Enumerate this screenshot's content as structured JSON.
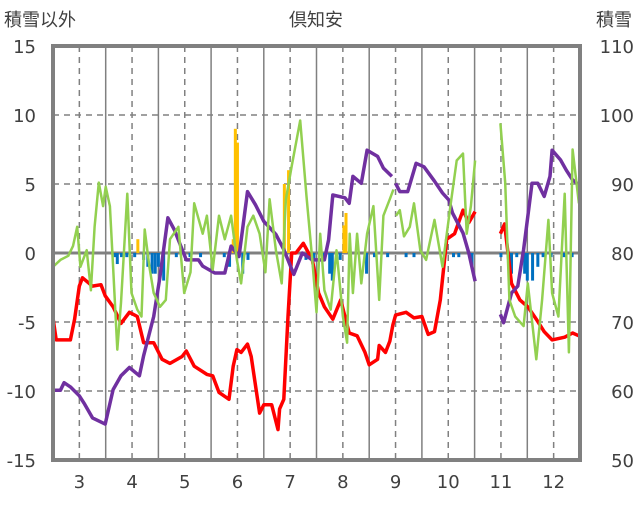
{
  "chart_data": {
    "type": "line",
    "title": "倶知安",
    "ylabel_left": "積雪以外",
    "ylabel_right": "積雪",
    "xlim": [
      2.5,
      12.5
    ],
    "ylim_left": [
      -15,
      15
    ],
    "ylim_right": [
      50,
      110
    ],
    "x_ticks": [
      "3",
      "4",
      "5",
      "6",
      "7",
      "8",
      "9",
      "10",
      "11",
      "12"
    ],
    "y_ticks_left": [
      "15",
      "10",
      "5",
      "0",
      "-5",
      "-10",
      "-15"
    ],
    "y_ticks_right": [
      "110",
      "100",
      "90",
      "80",
      "70",
      "60",
      "50"
    ],
    "grid": true,
    "colors": {
      "red": "#ff0000",
      "purple": "#7030a0",
      "green": "#92d050",
      "orange": "#ffc000",
      "blue": "#0070c0",
      "axis": "#808080"
    },
    "series": [
      {
        "name": "red",
        "axis": "left",
        "color": "#ff0000",
        "points": [
          [
            2.5,
            -4.7
          ],
          [
            2.56,
            -6.3
          ],
          [
            2.83,
            -6.3
          ],
          [
            2.91,
            -4.8
          ],
          [
            3.0,
            -2.4
          ],
          [
            3.06,
            -1.8
          ],
          [
            3.25,
            -2.4
          ],
          [
            3.41,
            -2.3
          ],
          [
            3.49,
            -3.1
          ],
          [
            3.64,
            -3.9
          ],
          [
            3.79,
            -5.1
          ],
          [
            3.95,
            -4.3
          ],
          [
            4.1,
            -4.6
          ],
          [
            4.22,
            -6.5
          ],
          [
            4.41,
            -6.5
          ],
          [
            4.57,
            -7.7
          ],
          [
            4.72,
            -8.0
          ],
          [
            4.95,
            -7.5
          ],
          [
            5.03,
            -7.1
          ],
          [
            5.18,
            -8.2
          ],
          [
            5.42,
            -8.8
          ],
          [
            5.53,
            -8.9
          ],
          [
            5.65,
            -10.1
          ],
          [
            5.84,
            -10.6
          ],
          [
            5.92,
            -8.2
          ],
          [
            5.99,
            -7.0
          ],
          [
            6.07,
            -7.2
          ],
          [
            6.19,
            -6.6
          ],
          [
            6.26,
            -7.5
          ],
          [
            6.42,
            -11.6
          ],
          [
            6.5,
            -11.0
          ],
          [
            6.65,
            -11.0
          ],
          [
            6.77,
            -12.8
          ],
          [
            6.8,
            -11.3
          ],
          [
            6.88,
            -10.6
          ],
          [
            6.96,
            -4.6
          ],
          [
            7.03,
            0
          ],
          [
            7.11,
            0
          ],
          [
            7.25,
            0.7
          ],
          [
            7.42,
            -0.5
          ],
          [
            7.54,
            -2.9
          ],
          [
            7.65,
            -3.9
          ],
          [
            7.81,
            -4.8
          ],
          [
            7.96,
            -3.4
          ],
          [
            8.12,
            -5.8
          ],
          [
            8.27,
            -6.0
          ],
          [
            8.42,
            -7.2
          ],
          [
            8.5,
            -8.1
          ],
          [
            8.66,
            -7.7
          ],
          [
            8.69,
            -6.7
          ],
          [
            8.81,
            -7.2
          ],
          [
            8.89,
            -6.4
          ],
          [
            8.95,
            -5.2
          ],
          [
            9.0,
            -4.5
          ],
          [
            9.2,
            -4.3
          ],
          [
            9.35,
            -4.7
          ],
          [
            9.5,
            -4.6
          ],
          [
            9.62,
            -5.9
          ],
          [
            9.74,
            -5.7
          ],
          [
            9.85,
            -3.4
          ],
          [
            9.97,
            1.0
          ],
          [
            10.12,
            1.4
          ],
          [
            10.28,
            3.1
          ],
          [
            10.39,
            2.2
          ],
          [
            10.51,
            3.0
          ],
          null,
          [
            10.99,
            1.4
          ],
          [
            11.07,
            2.1
          ],
          [
            11.2,
            -2.2
          ],
          [
            11.36,
            -3.4
          ],
          [
            11.51,
            -3.9
          ],
          [
            11.67,
            -4.8
          ],
          [
            11.82,
            -5.7
          ],
          [
            11.97,
            -6.3
          ],
          [
            12.21,
            -6.1
          ],
          [
            12.36,
            -5.8
          ],
          [
            12.48,
            -6.0
          ]
        ]
      },
      {
        "name": "purple",
        "axis": "right",
        "color": "#7030a0",
        "points": [
          [
            2.5,
            60.1
          ],
          [
            2.64,
            60.1
          ],
          [
            2.71,
            61.2
          ],
          [
            2.83,
            60.6
          ],
          [
            3.0,
            59.3
          ],
          [
            3.1,
            58.1
          ],
          [
            3.25,
            56.1
          ],
          [
            3.49,
            55.2
          ],
          [
            3.64,
            60.2
          ],
          [
            3.79,
            62.2
          ],
          [
            3.95,
            63.4
          ],
          [
            4.14,
            62.2
          ],
          [
            4.22,
            65.1
          ],
          [
            4.41,
            70.8
          ],
          [
            4.53,
            76.6
          ],
          [
            4.68,
            85.1
          ],
          [
            4.8,
            83.4
          ],
          [
            5.03,
            79.0
          ],
          [
            5.26,
            79.0
          ],
          [
            5.34,
            78.1
          ],
          [
            5.57,
            77.1
          ],
          [
            5.76,
            77.1
          ],
          [
            5.88,
            81.0
          ],
          [
            6.03,
            79.5
          ],
          [
            6.19,
            88.9
          ],
          [
            6.34,
            87.0
          ],
          [
            6.5,
            84.6
          ],
          [
            6.73,
            82.7
          ],
          [
            6.88,
            80.5
          ],
          [
            7.07,
            76.9
          ],
          [
            7.23,
            80.0
          ],
          [
            7.42,
            79.0
          ],
          [
            7.65,
            79.0
          ],
          [
            7.73,
            81.9
          ],
          [
            7.81,
            88.4
          ],
          [
            8.04,
            88.0
          ],
          [
            8.12,
            87.2
          ],
          [
            8.19,
            91.1
          ],
          [
            8.35,
            90.1
          ],
          [
            8.46,
            94.9
          ],
          [
            8.66,
            94.0
          ],
          [
            8.77,
            92.3
          ],
          [
            8.93,
            91.1
          ],
          null,
          [
            9.0,
            90.1
          ],
          [
            9.08,
            88.9
          ],
          [
            9.23,
            88.9
          ],
          [
            9.39,
            93.0
          ],
          [
            9.54,
            92.5
          ],
          [
            9.74,
            90.4
          ],
          [
            9.89,
            88.7
          ],
          [
            10.01,
            87.7
          ],
          [
            10.08,
            85.8
          ],
          [
            10.28,
            82.9
          ],
          [
            10.39,
            80.0
          ],
          [
            10.51,
            75.9
          ],
          null,
          [
            10.99,
            71.1
          ],
          [
            11.05,
            69.9
          ],
          [
            11.2,
            74.2
          ],
          [
            11.32,
            75.2
          ],
          [
            11.43,
            80.5
          ],
          [
            11.59,
            90.1
          ],
          [
            11.7,
            90.1
          ],
          [
            11.82,
            88.2
          ],
          [
            11.93,
            91.1
          ],
          [
            11.97,
            94.9
          ],
          [
            12.13,
            93.5
          ],
          [
            12.24,
            92.0
          ],
          [
            12.36,
            90.6
          ],
          [
            12.48,
            89.9
          ]
        ]
      },
      {
        "name": "green",
        "axis": "left",
        "color": "#92d050",
        "points": [
          [
            2.5,
            -1.0
          ],
          [
            2.64,
            -0.5
          ],
          [
            2.79,
            -0.2
          ],
          [
            2.88,
            0.5
          ],
          [
            2.96,
            1.9
          ],
          [
            3.02,
            -1.0
          ],
          [
            3.14,
            0.2
          ],
          [
            3.22,
            -2.7
          ],
          [
            3.29,
            1.9
          ],
          [
            3.37,
            5.1
          ],
          [
            3.45,
            3.4
          ],
          [
            3.5,
            4.8
          ],
          [
            3.58,
            3.4
          ],
          [
            3.64,
            -1.0
          ],
          [
            3.72,
            -7.0
          ],
          [
            3.79,
            -3.6
          ],
          [
            3.91,
            4.3
          ],
          [
            3.99,
            -2.9
          ],
          [
            4.1,
            -4.1
          ],
          [
            4.18,
            -4.6
          ],
          [
            4.24,
            1.7
          ],
          [
            4.33,
            -1.0
          ],
          [
            4.41,
            -2.9
          ],
          [
            4.53,
            -3.9
          ],
          [
            4.64,
            -3.4
          ],
          [
            4.72,
            1.0
          ],
          [
            4.88,
            1.9
          ],
          [
            4.99,
            -2.9
          ],
          [
            5.11,
            -1.4
          ],
          [
            5.18,
            3.6
          ],
          [
            5.34,
            1.4
          ],
          [
            5.42,
            2.7
          ],
          [
            5.53,
            -1.2
          ],
          [
            5.65,
            2.7
          ],
          [
            5.76,
            1.0
          ],
          [
            5.88,
            2.7
          ],
          [
            5.99,
            -0.5
          ],
          [
            6.07,
            -2.2
          ],
          [
            6.19,
            1.9
          ],
          [
            6.3,
            2.7
          ],
          [
            6.42,
            1.4
          ],
          [
            6.53,
            -1.4
          ],
          [
            6.61,
            3.9
          ],
          [
            6.73,
            0.2
          ],
          [
            6.84,
            -2.2
          ],
          [
            6.92,
            3.9
          ],
          [
            7.03,
            6.3
          ],
          [
            7.19,
            9.6
          ],
          [
            7.31,
            4.1
          ],
          [
            7.42,
            -0.5
          ],
          [
            7.5,
            -4.3
          ],
          [
            7.57,
            1.4
          ],
          [
            7.65,
            -2.7
          ],
          [
            7.77,
            -4.1
          ],
          [
            7.88,
            0.2
          ],
          [
            8.0,
            -4.6
          ],
          [
            8.08,
            -6.5
          ],
          [
            8.13,
            1.4
          ],
          [
            8.19,
            -2.9
          ],
          [
            8.27,
            1.4
          ],
          [
            8.35,
            -2.2
          ],
          [
            8.46,
            1.4
          ],
          [
            8.58,
            3.4
          ],
          [
            8.69,
            -3.4
          ],
          [
            8.77,
            2.7
          ],
          [
            8.89,
            3.9
          ],
          [
            8.96,
            4.6
          ],
          null,
          [
            9.01,
            2.7
          ],
          [
            9.08,
            3.1
          ],
          [
            9.16,
            1.2
          ],
          [
            9.27,
            1.9
          ],
          [
            9.35,
            3.6
          ],
          [
            9.47,
            0.2
          ],
          [
            9.58,
            -0.5
          ],
          [
            9.74,
            2.4
          ],
          [
            9.89,
            -1.0
          ],
          [
            10.04,
            3.4
          ],
          [
            10.16,
            6.7
          ],
          [
            10.28,
            7.2
          ],
          [
            10.35,
            1.4
          ],
          [
            10.43,
            3.4
          ],
          [
            10.51,
            6.7
          ],
          null,
          [
            10.99,
            9.4
          ],
          [
            11.08,
            5.1
          ],
          [
            11.16,
            -3.4
          ],
          [
            11.27,
            -4.6
          ],
          [
            11.43,
            -5.3
          ],
          [
            11.51,
            -2.2
          ],
          [
            11.67,
            -7.7
          ],
          [
            11.78,
            -3.4
          ],
          [
            11.9,
            2.4
          ],
          [
            11.97,
            -2.9
          ],
          [
            12.09,
            -4.6
          ],
          [
            12.21,
            4.3
          ],
          [
            12.29,
            -7.2
          ],
          [
            12.36,
            7.5
          ],
          [
            12.48,
            3.6
          ]
        ]
      }
    ],
    "bars": [
      {
        "name": "orange",
        "axis": "left",
        "color": "#ffc000",
        "points": [
          [
            4.11,
            1.0
          ],
          [
            5.92,
            1.0
          ],
          [
            5.96,
            9.0
          ],
          [
            6.0,
            8.0
          ],
          [
            6.89,
            5.0
          ],
          [
            6.97,
            6.0
          ],
          [
            8.02,
            2.0
          ],
          [
            8.06,
            2.9
          ]
        ]
      },
      {
        "name": "blue",
        "axis": "left",
        "color": "#0070c0",
        "points": [
          [
            3.68,
            -0.3
          ],
          [
            3.72,
            -0.8
          ],
          [
            3.8,
            -0.3
          ],
          [
            3.9,
            -0.3
          ],
          [
            4.05,
            -0.3
          ],
          [
            4.22,
            -0.5
          ],
          [
            4.3,
            -1.0
          ],
          [
            4.38,
            -1.5
          ],
          [
            4.44,
            -1.5
          ],
          [
            4.5,
            -1.0
          ],
          [
            4.6,
            -2.0
          ],
          [
            4.84,
            -0.3
          ],
          [
            5.1,
            -0.3
          ],
          [
            5.3,
            -0.3
          ],
          [
            5.75,
            -0.3
          ],
          [
            5.85,
            -1.0
          ],
          [
            6.1,
            -1.5
          ],
          [
            6.2,
            -0.5
          ],
          [
            7.3,
            -0.5
          ],
          [
            7.45,
            -0.5
          ],
          [
            7.65,
            -0.5
          ],
          [
            7.75,
            -1.5
          ],
          [
            7.8,
            -2.0
          ],
          [
            7.95,
            -0.5
          ],
          [
            8.45,
            -1.5
          ],
          [
            8.6,
            -0.3
          ],
          [
            8.85,
            -0.3
          ],
          [
            9.2,
            -0.3
          ],
          [
            9.35,
            -0.3
          ],
          [
            10.1,
            -0.3
          ],
          [
            10.2,
            -0.3
          ],
          [
            10.45,
            -1.0
          ],
          [
            11.0,
            -0.3
          ],
          [
            11.2,
            -1.5
          ],
          [
            11.3,
            -0.3
          ],
          [
            11.45,
            -1.5
          ],
          [
            11.5,
            -2.0
          ],
          [
            11.6,
            -2.0
          ],
          [
            11.7,
            -1.0
          ],
          [
            11.8,
            -0.3
          ],
          [
            11.95,
            -0.3
          ],
          [
            12.2,
            -0.3
          ],
          [
            12.35,
            -0.3
          ]
        ]
      }
    ]
  }
}
